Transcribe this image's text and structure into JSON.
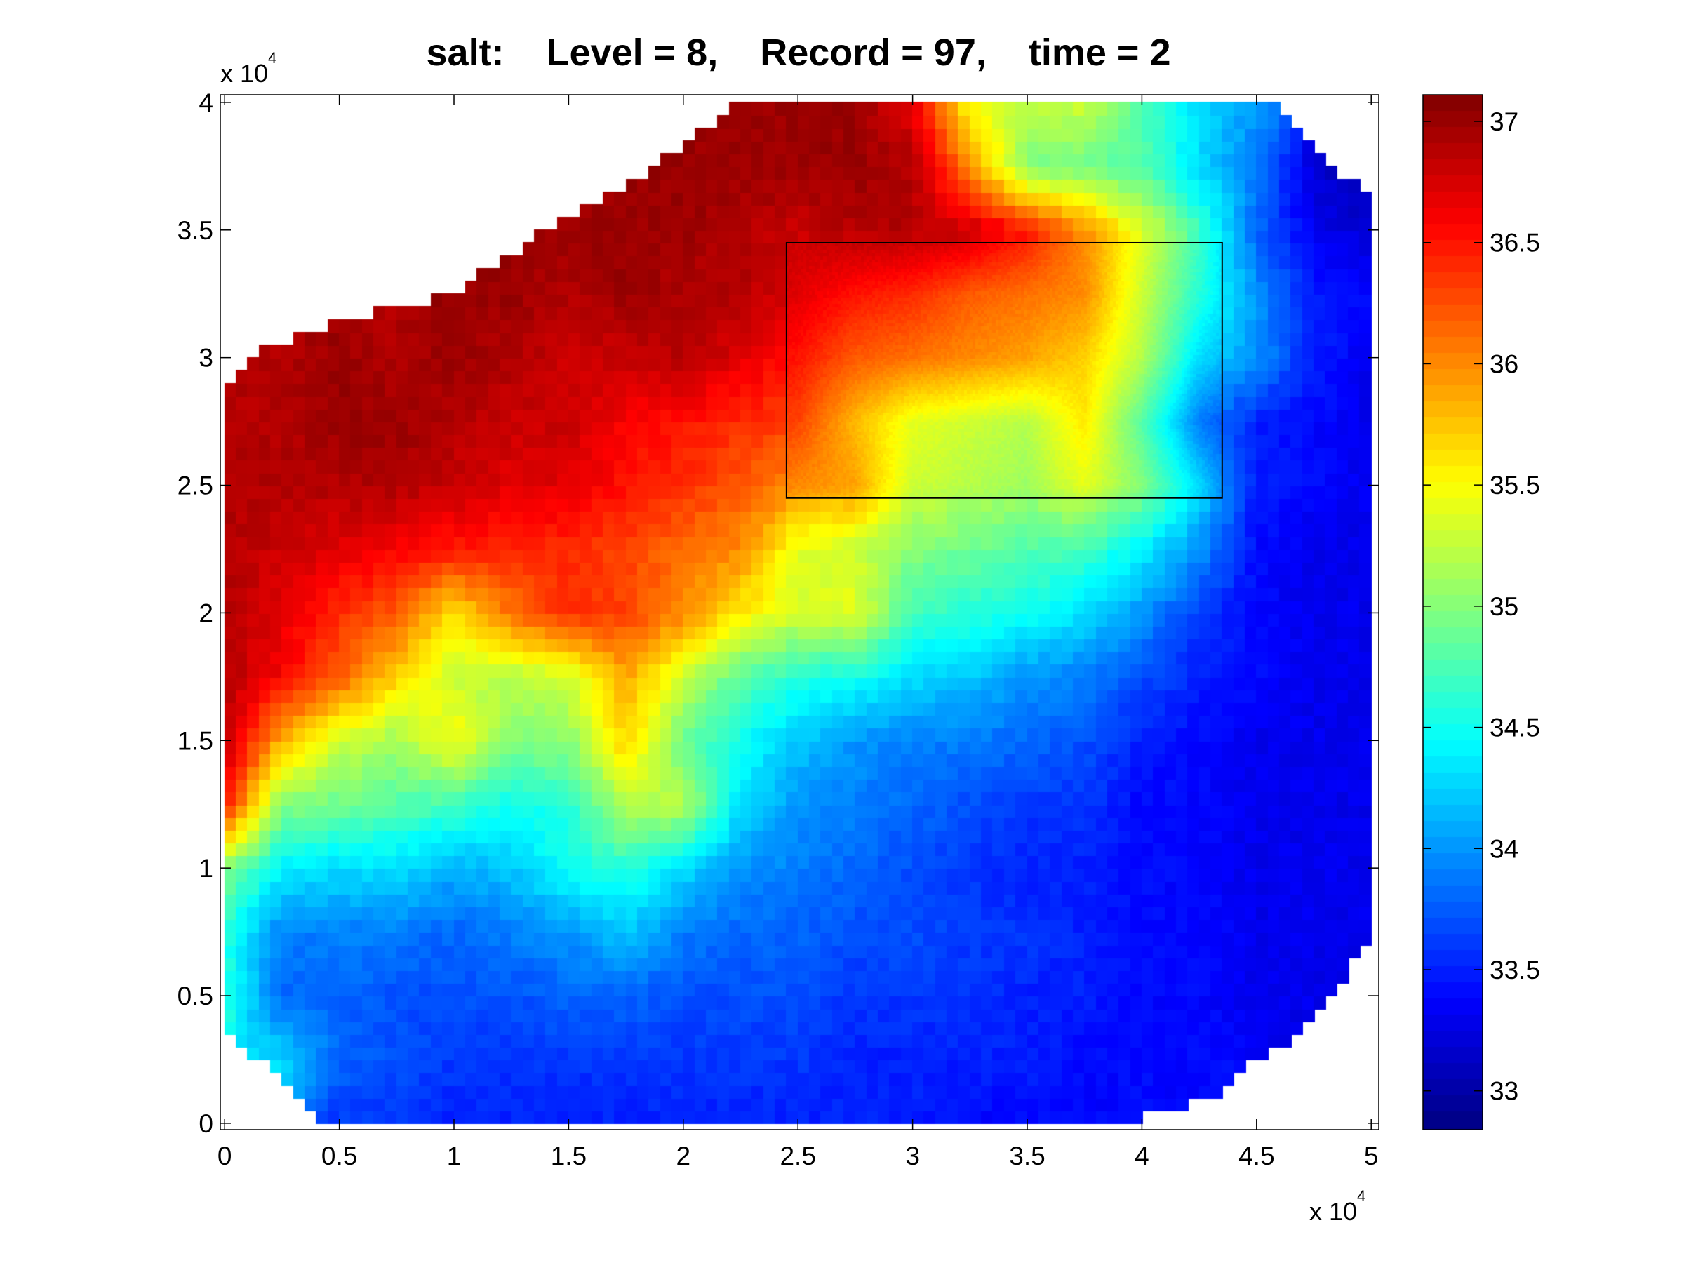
{
  "chart_data": {
    "type": "heatmap",
    "title": "salt:    Level = 8,    Record = 97,    time = 2",
    "xlabel": "",
    "ylabel": "",
    "x_exponent_label": {
      "base": "x 10",
      "power": "4"
    },
    "y_exponent_label": {
      "base": "x 10",
      "power": "4"
    },
    "xlim": [
      -190,
      50330
    ],
    "ylim": [
      -250,
      40300
    ],
    "xticks": [
      0,
      5000,
      10000,
      15000,
      20000,
      25000,
      30000,
      35000,
      40000,
      45000,
      50000
    ],
    "xtick_labels": [
      "0",
      "0.5",
      "1",
      "1.5",
      "2",
      "2.5",
      "3",
      "3.5",
      "4",
      "4.5",
      "5"
    ],
    "yticks": [
      0,
      5000,
      10000,
      15000,
      20000,
      25000,
      30000,
      35000,
      40000
    ],
    "ytick_labels": [
      "0",
      "0.5",
      "1",
      "1.5",
      "2",
      "2.5",
      "3",
      "3.5",
      "4"
    ],
    "colormap": "jet",
    "clim": [
      32.84,
      37.11
    ],
    "colorbar": {
      "ticks": [
        33,
        33.5,
        34,
        34.5,
        35,
        35.5,
        36,
        36.5,
        37
      ],
      "tick_labels": [
        "33",
        "33.5",
        "34",
        "34.5",
        "35",
        "35.5",
        "36",
        "36.5",
        "37"
      ],
      "placement": "right"
    },
    "grid": false,
    "grid_x": [
      0,
      2500,
      5000,
      7500,
      10000,
      12500,
      15000,
      17500,
      20000,
      22500,
      25000,
      27500,
      30000,
      32500,
      35000,
      37500,
      40000,
      42500,
      45000,
      47500,
      50000
    ],
    "grid_y": [
      40000,
      37500,
      35000,
      32500,
      30000,
      27500,
      25000,
      22500,
      20000,
      17500,
      15000,
      12500,
      10000,
      7500,
      5000,
      2500,
      0
    ],
    "values": [
      [
        null,
        null,
        null,
        null,
        null,
        null,
        null,
        null,
        null,
        37,
        37,
        37,
        36.7,
        35.5,
        35.2,
        35.3,
        34.8,
        34.3,
        34,
        null,
        null
      ],
      [
        null,
        null,
        null,
        null,
        null,
        null,
        null,
        null,
        37,
        37,
        37,
        37,
        36.9,
        36,
        35,
        34.9,
        34.8,
        34.3,
        33.9,
        33.2,
        33
      ],
      [
        null,
        null,
        null,
        null,
        null,
        null,
        37,
        37,
        37,
        36.9,
        36.8,
        36.9,
        36.9,
        36.8,
        36.5,
        36,
        35.4,
        34.7,
        33.8,
        33.3,
        33.2
      ],
      [
        null,
        null,
        null,
        null,
        37,
        37,
        36.9,
        37,
        36.9,
        36.9,
        36.7,
        36.5,
        36.4,
        36.2,
        36.1,
        36,
        35.3,
        34.6,
        34,
        33.5,
        33.4
      ],
      [
        36.9,
        36.9,
        37,
        36.9,
        37,
        36.9,
        36.8,
        36.8,
        36.9,
        36.7,
        36.5,
        36.2,
        36.1,
        36,
        35.9,
        35.7,
        35.2,
        34.3,
        34,
        33.5,
        33.3
      ],
      [
        36.9,
        36.9,
        37,
        37,
        36.9,
        36.8,
        36.8,
        36.6,
        36.5,
        36.4,
        36.3,
        35.8,
        35.4,
        35.3,
        35.2,
        35.6,
        34.8,
        33.9,
        33.5,
        33.4,
        33.3
      ],
      [
        36.9,
        36.9,
        36.9,
        36.9,
        36.8,
        36.7,
        36.7,
        36.5,
        36.4,
        36.2,
        36,
        35.9,
        35.3,
        35.2,
        35.1,
        35.4,
        35,
        34.3,
        33.5,
        33.4,
        33.3
      ],
      [
        36.9,
        36.8,
        36.7,
        36.6,
        36.5,
        36.4,
        36.4,
        36.3,
        36.1,
        36,
        35.4,
        35.3,
        35,
        34.9,
        34.8,
        34.7,
        34.4,
        34,
        33.4,
        33.3,
        33.3
      ],
      [
        36.9,
        36.7,
        36.4,
        36.2,
        35.6,
        36.1,
        36.4,
        36.3,
        36,
        35.6,
        35.3,
        35.4,
        34.7,
        34.6,
        34.5,
        34.3,
        34,
        33.6,
        33.4,
        33.3,
        33.3
      ],
      [
        36.9,
        36.6,
        36.2,
        35.7,
        35.3,
        35.2,
        35.3,
        35.9,
        35.3,
        34.8,
        34.6,
        34.5,
        34.3,
        34.2,
        34,
        33.9,
        33.7,
        33.5,
        33.4,
        33.3,
        33.3
      ],
      [
        36.9,
        35.8,
        35.3,
        35.1,
        35.5,
        35,
        35,
        35.7,
        34.9,
        34.5,
        34.2,
        34,
        33.9,
        33.9,
        33.8,
        33.7,
        33.5,
        33.4,
        33.3,
        33.3,
        33.3
      ],
      [
        36.5,
        35,
        34.9,
        34.8,
        34.7,
        34.5,
        34.6,
        35.2,
        35.2,
        34.3,
        34,
        33.9,
        33.8,
        33.7,
        33.6,
        33.6,
        33.4,
        33.4,
        33.3,
        33.3,
        33.3
      ],
      [
        35,
        34.4,
        34.3,
        34.3,
        34.1,
        34.2,
        34.5,
        34.6,
        34.3,
        34,
        33.9,
        33.8,
        33.7,
        33.6,
        33.5,
        33.5,
        33.4,
        33.4,
        33.3,
        33.3,
        33.3
      ],
      [
        34.6,
        33.9,
        33.9,
        33.9,
        33.8,
        33.9,
        34,
        34.2,
        33.9,
        33.8,
        33.8,
        33.7,
        33.7,
        33.6,
        33.6,
        33.5,
        33.4,
        33.4,
        33.3,
        33.3,
        33.3
      ],
      [
        34.6,
        33.8,
        33.8,
        33.7,
        33.7,
        33.7,
        33.8,
        33.8,
        33.7,
        33.7,
        33.7,
        33.6,
        33.6,
        33.6,
        33.5,
        33.5,
        33.4,
        33.4,
        33.3,
        33.3,
        null
      ],
      [
        null,
        34.3,
        33.8,
        33.7,
        33.6,
        33.6,
        33.6,
        33.6,
        33.6,
        33.6,
        33.6,
        33.5,
        33.5,
        33.5,
        33.5,
        33.4,
        33.4,
        33.4,
        null,
        null,
        null
      ],
      [
        null,
        null,
        33.6,
        33.6,
        33.5,
        33.5,
        33.5,
        33.5,
        33.5,
        33.5,
        33.5,
        33.5,
        33.5,
        33.4,
        33.4,
        33.4,
        null,
        null,
        null,
        null,
        null
      ]
    ],
    "domain_outline": [
      [
        0,
        28500
      ],
      [
        2000,
        30500
      ],
      [
        5500,
        31500
      ],
      [
        10000,
        32500
      ],
      [
        11500,
        33500
      ],
      [
        15000,
        35500
      ],
      [
        18000,
        37000
      ],
      [
        21000,
        39000
      ],
      [
        22300,
        40000
      ],
      [
        45500,
        40000
      ],
      [
        47500,
        38500
      ],
      [
        49000,
        37000
      ],
      [
        50000,
        36500
      ],
      [
        50000,
        7000
      ],
      [
        49000,
        6000
      ],
      [
        47000,
        3500
      ],
      [
        45000,
        2500
      ],
      [
        43000,
        1000
      ],
      [
        41000,
        500
      ],
      [
        39000,
        0
      ],
      [
        4000,
        0
      ],
      [
        3000,
        1500
      ],
      [
        1500,
        2500
      ],
      [
        0,
        3500
      ]
    ],
    "annotation_box": {
      "x": [
        24500,
        43500
      ],
      "y": [
        24500,
        34500
      ]
    }
  }
}
